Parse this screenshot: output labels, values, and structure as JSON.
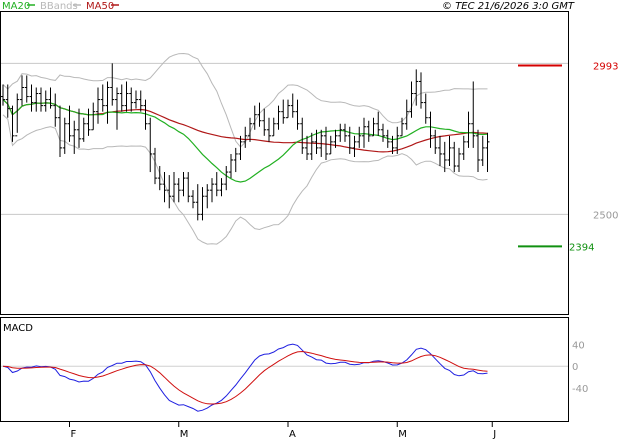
{
  "chart_data": {
    "type": "line",
    "header": {
      "legend": [
        {
          "name": "MA20",
          "color": "#22b022"
        },
        {
          "name": "BBands",
          "color": "#b8b8b8"
        },
        {
          "name": "MA50",
          "color": "#b01818"
        }
      ],
      "source": "© TEC 21/6/2026 3:0 GMT"
    },
    "price_panel": {
      "ylim": [
        2170,
        3170
      ],
      "yticks": [
        "2500"
      ],
      "grid_values": [
        2500,
        3000
      ],
      "levels": [
        {
          "label": "2993",
          "value": 2993,
          "color": "#d40000"
        },
        {
          "label": "2394",
          "value": 2394,
          "color": "#109010"
        }
      ],
      "ohlc": [
        [
          2890,
          2930,
          2860,
          2880
        ],
        [
          2880,
          2930,
          2820,
          2850
        ],
        [
          2850,
          2860,
          2740,
          2760
        ],
        [
          2760,
          2900,
          2770,
          2880
        ],
        [
          2880,
          2960,
          2860,
          2920
        ],
        [
          2920,
          2960,
          2870,
          2890
        ],
        [
          2890,
          2930,
          2840,
          2870
        ],
        [
          2870,
          2920,
          2840,
          2900
        ],
        [
          2900,
          2920,
          2840,
          2860
        ],
        [
          2860,
          2910,
          2840,
          2880
        ],
        [
          2880,
          2920,
          2850,
          2860
        ],
        [
          2860,
          2900,
          2790,
          2820
        ],
        [
          2820,
          2860,
          2690,
          2720
        ],
        [
          2720,
          2820,
          2700,
          2800
        ],
        [
          2800,
          2860,
          2740,
          2760
        ],
        [
          2760,
          2810,
          2700,
          2780
        ],
        [
          2780,
          2850,
          2720,
          2750
        ],
        [
          2750,
          2820,
          2740,
          2800
        ],
        [
          2800,
          2850,
          2760,
          2780
        ],
        [
          2780,
          2870,
          2780,
          2840
        ],
        [
          2840,
          2920,
          2800,
          2880
        ],
        [
          2880,
          2930,
          2840,
          2860
        ],
        [
          2860,
          2940,
          2800,
          2920
        ],
        [
          2920,
          3000,
          2860,
          2880
        ],
        [
          2880,
          2920,
          2780,
          2900
        ],
        [
          2900,
          2930,
          2840,
          2860
        ],
        [
          2860,
          2940,
          2840,
          2900
        ],
        [
          2900,
          2920,
          2840,
          2870
        ],
        [
          2870,
          2910,
          2850,
          2880
        ],
        [
          2880,
          2910,
          2840,
          2860
        ],
        [
          2860,
          2880,
          2780,
          2800
        ],
        [
          2800,
          2820,
          2640,
          2700
        ],
        [
          2700,
          2720,
          2600,
          2620
        ],
        [
          2620,
          2660,
          2580,
          2600
        ],
        [
          2600,
          2640,
          2540,
          2580
        ],
        [
          2580,
          2630,
          2520,
          2560
        ],
        [
          2560,
          2640,
          2540,
          2600
        ],
        [
          2600,
          2620,
          2540,
          2580
        ],
        [
          2580,
          2640,
          2560,
          2620
        ],
        [
          2620,
          2640,
          2540,
          2560
        ],
        [
          2560,
          2580,
          2520,
          2540
        ],
        [
          2540,
          2600,
          2480,
          2500
        ],
        [
          2500,
          2590,
          2480,
          2560
        ],
        [
          2560,
          2600,
          2520,
          2580
        ],
        [
          2580,
          2620,
          2540,
          2600
        ],
        [
          2600,
          2640,
          2560,
          2580
        ],
        [
          2580,
          2620,
          2560,
          2600
        ],
        [
          2600,
          2660,
          2580,
          2640
        ],
        [
          2640,
          2700,
          2620,
          2680
        ],
        [
          2680,
          2720,
          2640,
          2700
        ],
        [
          2700,
          2760,
          2680,
          2740
        ],
        [
          2740,
          2790,
          2720,
          2760
        ],
        [
          2760,
          2820,
          2740,
          2800
        ],
        [
          2800,
          2860,
          2780,
          2830
        ],
        [
          2830,
          2870,
          2790,
          2810
        ],
        [
          2810,
          2850,
          2760,
          2780
        ],
        [
          2780,
          2820,
          2740,
          2760
        ],
        [
          2760,
          2820,
          2760,
          2800
        ],
        [
          2800,
          2860,
          2780,
          2840
        ],
        [
          2840,
          2880,
          2800,
          2820
        ],
        [
          2820,
          2880,
          2820,
          2860
        ],
        [
          2860,
          2900,
          2820,
          2840
        ],
        [
          2840,
          2880,
          2780,
          2800
        ],
        [
          2800,
          2820,
          2700,
          2720
        ],
        [
          2720,
          2760,
          2680,
          2700
        ],
        [
          2700,
          2770,
          2680,
          2740
        ],
        [
          2740,
          2780,
          2700,
          2720
        ],
        [
          2720,
          2780,
          2690,
          2760
        ],
        [
          2760,
          2790,
          2680,
          2700
        ],
        [
          2700,
          2760,
          2700,
          2740
        ],
        [
          2740,
          2780,
          2720,
          2760
        ],
        [
          2760,
          2800,
          2740,
          2780
        ],
        [
          2780,
          2800,
          2740,
          2760
        ],
        [
          2760,
          2790,
          2700,
          2720
        ],
        [
          2720,
          2760,
          2690,
          2740
        ],
        [
          2740,
          2790,
          2720,
          2760
        ],
        [
          2760,
          2820,
          2720,
          2790
        ],
        [
          2790,
          2810,
          2740,
          2760
        ],
        [
          2760,
          2820,
          2760,
          2800
        ],
        [
          2800,
          2840,
          2760,
          2780
        ],
        [
          2780,
          2800,
          2740,
          2760
        ],
        [
          2760,
          2780,
          2720,
          2740
        ],
        [
          2740,
          2760,
          2700,
          2720
        ],
        [
          2720,
          2790,
          2700,
          2760
        ],
        [
          2760,
          2820,
          2760,
          2800
        ],
        [
          2800,
          2880,
          2780,
          2840
        ],
        [
          2840,
          2940,
          2820,
          2900
        ],
        [
          2900,
          2980,
          2860,
          2940
        ],
        [
          2940,
          2970,
          2850,
          2870
        ],
        [
          2870,
          2900,
          2800,
          2820
        ],
        [
          2820,
          2840,
          2720,
          2760
        ],
        [
          2760,
          2780,
          2700,
          2720
        ],
        [
          2720,
          2760,
          2660,
          2700
        ],
        [
          2700,
          2740,
          2640,
          2680
        ],
        [
          2680,
          2760,
          2660,
          2720
        ],
        [
          2720,
          2740,
          2640,
          2660
        ],
        [
          2660,
          2720,
          2640,
          2700
        ],
        [
          2700,
          2760,
          2680,
          2740
        ],
        [
          2740,
          2840,
          2720,
          2800
        ],
        [
          2800,
          2940,
          2720,
          2760
        ],
        [
          2760,
          2780,
          2640,
          2680
        ],
        [
          2680,
          2760,
          2660,
          2720
        ],
        [
          2720,
          2770,
          2640,
          2740
        ]
      ]
    },
    "macd_panel": {
      "title": "MACD",
      "ylim": [
        -100,
        88
      ],
      "yticks": [
        {
          "value": 40,
          "label": "40"
        },
        {
          "value": 0,
          "label": "0"
        },
        {
          "value": -40,
          "label": "-40"
        }
      ],
      "macd_color": "#2020e0",
      "signal_color": "#d01010"
    },
    "xaxis": {
      "month_labels": [
        {
          "label": "F",
          "index": 14
        },
        {
          "label": "M",
          "index": 37
        },
        {
          "label": "A",
          "index": 60
        },
        {
          "label": "M",
          "index": 83
        },
        {
          "label": "J",
          "index": 103
        }
      ]
    }
  }
}
